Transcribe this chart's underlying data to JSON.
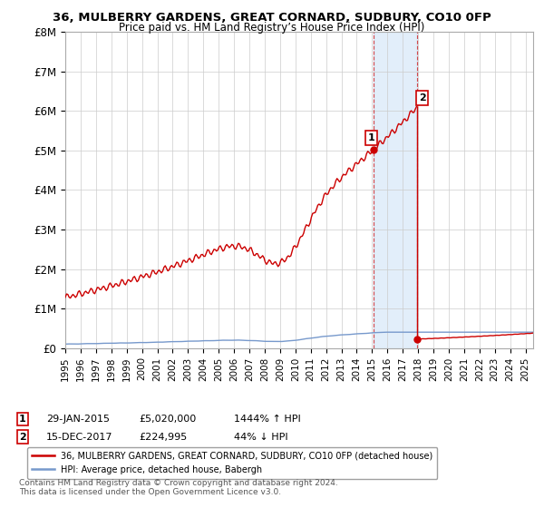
{
  "title": "36, MULBERRY GARDENS, GREAT CORNARD, SUDBURY, CO10 0FP",
  "subtitle": "Price paid vs. HM Land Registry’s House Price Index (HPI)",
  "ylim": [
    0,
    8000000
  ],
  "yticks": [
    0,
    1000000,
    2000000,
    3000000,
    4000000,
    5000000,
    6000000,
    7000000,
    8000000
  ],
  "ytick_labels": [
    "£0",
    "£1M",
    "£2M",
    "£3M",
    "£4M",
    "£5M",
    "£6M",
    "£7M",
    "£8M"
  ],
  "xlim_start": 1995.0,
  "xlim_end": 2025.5,
  "red_line_color": "#cc0000",
  "blue_line_color": "#7799cc",
  "point1_x": 2015.08,
  "point1_y": 5020000,
  "point2_x": 2017.96,
  "point2_y": 224995,
  "point2_peak_y": 6900000,
  "shade_x_start": 2015.08,
  "shade_x_end": 2017.96,
  "legend_line1": "36, MULBERRY GARDENS, GREAT CORNARD, SUDBURY, CO10 0FP (detached house)",
  "legend_line2": "HPI: Average price, detached house, Babergh",
  "background_color": "#ffffff",
  "grid_color": "#cccccc",
  "footnote": "Contains HM Land Registry data © Crown copyright and database right 2024.\nThis data is licensed under the Open Government Licence v3.0."
}
